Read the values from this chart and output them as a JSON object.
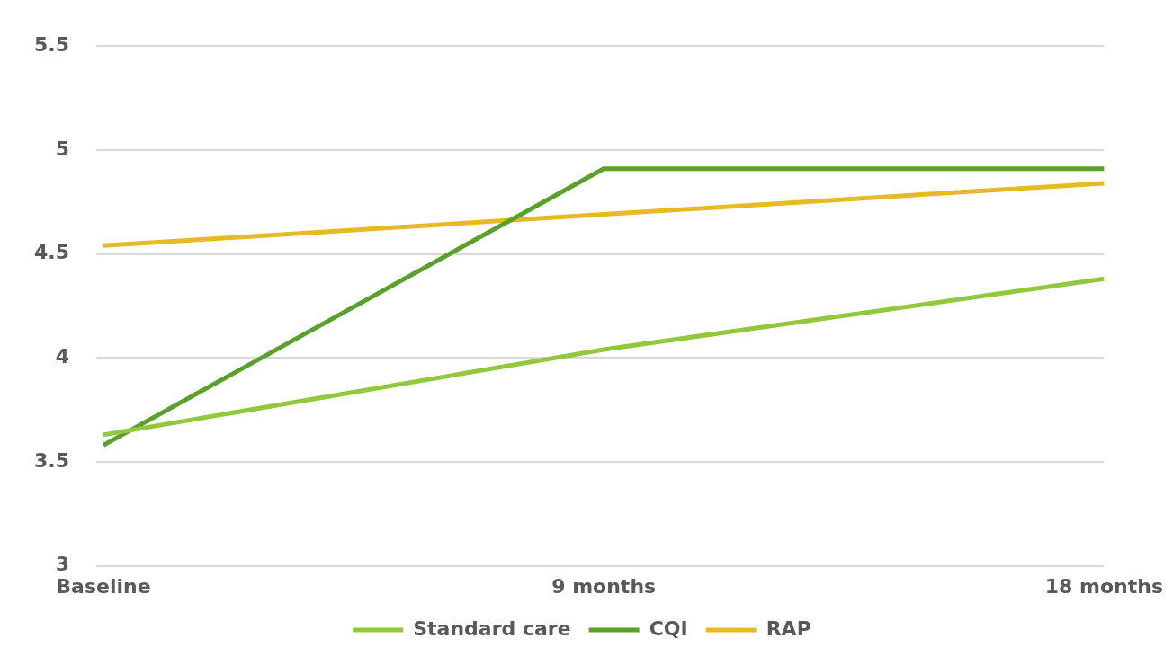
{
  "chart_data": {
    "type": "line",
    "categories": [
      "Baseline",
      "9 months",
      "18 months"
    ],
    "series": [
      {
        "name": "Standard care",
        "color": "#92c83e",
        "values": [
          3.63,
          4.04,
          4.38
        ]
      },
      {
        "name": "CQI",
        "color": "#5aa02c",
        "values": [
          3.58,
          4.91,
          4.91
        ]
      },
      {
        "name": "RAP",
        "color": "#e8b923",
        "values": [
          4.54,
          4.69,
          4.84
        ]
      }
    ],
    "ylim": [
      3,
      5.5
    ],
    "yticks": [
      3,
      3.5,
      4,
      4.5,
      5,
      5.5
    ],
    "grid": "y",
    "legend": "bottom"
  }
}
